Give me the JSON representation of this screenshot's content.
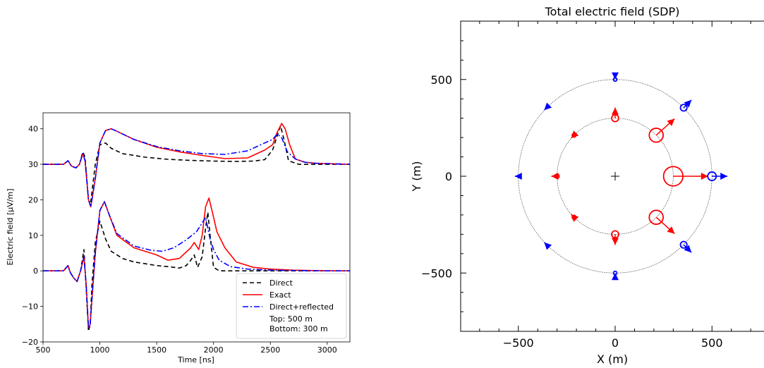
{
  "chart_data": [
    {
      "type": "line",
      "xlabel": "Time [ns]",
      "ylabel": "Electric field [μV/m]",
      "xlim": [
        500,
        3200
      ],
      "ylim": [
        -20,
        44.5
      ],
      "xticks": [
        500,
        1000,
        1500,
        2000,
        2500,
        3000
      ],
      "yticks": [
        -20,
        -10,
        0,
        10,
        20,
        30,
        40
      ],
      "xtick_labels": [
        "500",
        "1000",
        "1500",
        "2000",
        "2500",
        "3000"
      ],
      "ytick_labels": [
        "−20",
        "−10",
        "0",
        "10",
        "20",
        "30",
        "40"
      ],
      "grid": false,
      "legend": {
        "position": "lower-right",
        "entries": [
          "Direct",
          "Exact",
          "Direct+reflected"
        ],
        "note_lines": [
          "Top: 500 m",
          "Bottom: 300 m"
        ]
      },
      "series": [
        {
          "name": "Direct",
          "color": "#000000",
          "dash": "6,4",
          "group": "top",
          "x": [
            500,
            600,
            680,
            720,
            750,
            790,
            820,
            850,
            870,
            900,
            920,
            960,
            1000,
            1050,
            1100,
            1200,
            1400,
            1600,
            1800,
            2000,
            2200,
            2350,
            2450,
            2520,
            2560,
            2590,
            2620,
            2660,
            2750,
            2900,
            3100,
            3200
          ],
          "y": [
            30,
            30,
            30,
            31,
            29.5,
            29,
            30,
            33.5,
            32,
            20,
            19.5,
            30,
            35.5,
            36,
            34.5,
            33,
            32,
            31.4,
            31.1,
            30.9,
            30.8,
            30.9,
            31.3,
            34,
            38,
            40.8,
            37,
            31,
            30,
            30,
            30,
            30
          ]
        },
        {
          "name": "Exact",
          "color": "#ff0000",
          "dash": "",
          "group": "top",
          "x": [
            500,
            600,
            680,
            720,
            750,
            790,
            820,
            850,
            870,
            900,
            920,
            960,
            1000,
            1050,
            1100,
            1150,
            1300,
            1500,
            1700,
            1900,
            2100,
            2300,
            2450,
            2520,
            2560,
            2600,
            2630,
            2670,
            2720,
            2800,
            2900,
            3100,
            3200
          ],
          "y": [
            30,
            30,
            30,
            31,
            29.5,
            29,
            30,
            33,
            31,
            20,
            18,
            26,
            36,
            39.5,
            40,
            39.3,
            37,
            34.8,
            33.5,
            32.5,
            31.6,
            31.8,
            34,
            35.5,
            39,
            41.5,
            40,
            35.5,
            31.5,
            30.6,
            30.3,
            30.1,
            30
          ],
          "labels": [
            "",
            "",
            "",
            "",
            "",
            "",
            "",
            "",
            "",
            "",
            "",
            "",
            "",
            "",
            "",
            "",
            "",
            "",
            "",
            "",
            "",
            "",
            "",
            "",
            "",
            "",
            "",
            "",
            "",
            "",
            "",
            "",
            ""
          ]
        },
        {
          "name": "Direct+reflected",
          "color": "#0000ff",
          "dash": "8,3,2,3",
          "group": "top",
          "x": [
            500,
            600,
            680,
            720,
            750,
            790,
            820,
            850,
            870,
            900,
            920,
            960,
            1000,
            1050,
            1100,
            1150,
            1300,
            1500,
            1700,
            1900,
            2100,
            2300,
            2450,
            2520,
            2560,
            2600,
            2650,
            2720,
            2800,
            2900,
            3100,
            3200
          ],
          "y": [
            30,
            30,
            30,
            31,
            29.5,
            29,
            30,
            33,
            31,
            20,
            18,
            26,
            36,
            39.5,
            40,
            39.3,
            37,
            35,
            33.8,
            33,
            32.8,
            33.8,
            36,
            37,
            38.5,
            37.5,
            33.5,
            31.5,
            30.6,
            30.3,
            30.1,
            30
          ]
        },
        {
          "name": "Direct",
          "color": "#000000",
          "dash": "6,4",
          "group": "bottom",
          "x": [
            500,
            600,
            680,
            720,
            740,
            770,
            800,
            830,
            860,
            880,
            900,
            915,
            930,
            960,
            1000,
            1050,
            1100,
            1200,
            1300,
            1400,
            1500,
            1600,
            1700,
            1760,
            1800,
            1830,
            1860,
            1900,
            1930,
            1950,
            1970,
            2000,
            2050,
            2150,
            2300,
            2500,
            2700,
            3000,
            3200
          ],
          "y": [
            0,
            0,
            0,
            1.5,
            -0.5,
            -2,
            -3,
            0,
            6,
            -5,
            -17,
            -15,
            -4,
            8,
            14,
            9,
            5.5,
            3.5,
            2.5,
            2,
            1.5,
            1.2,
            0.8,
            1.5,
            3,
            4.5,
            1,
            4,
            12,
            16.5,
            10,
            1,
            0,
            0,
            0,
            0,
            0,
            0,
            0
          ]
        },
        {
          "name": "Exact",
          "color": "#ff0000",
          "dash": "",
          "group": "bottom",
          "x": [
            500,
            600,
            680,
            720,
            740,
            770,
            800,
            830,
            860,
            880,
            900,
            915,
            930,
            960,
            1000,
            1040,
            1080,
            1150,
            1300,
            1500,
            1600,
            1700,
            1800,
            1830,
            1870,
            1900,
            1930,
            1960,
            1990,
            2030,
            2100,
            2200,
            2350,
            2500,
            2700,
            3000,
            3200
          ],
          "y": [
            0,
            0,
            0,
            1.5,
            -0.5,
            -2,
            -3,
            0,
            4,
            -4,
            -16,
            -15,
            -8,
            5,
            17,
            19.5,
            16,
            10,
            6.5,
            4.5,
            3,
            3.5,
            6.5,
            8,
            6,
            10,
            18,
            20.5,
            16.5,
            11,
            6.5,
            2.5,
            1,
            0.5,
            0.2,
            0,
            0
          ]
        },
        {
          "name": "Direct+reflected",
          "color": "#0000ff",
          "dash": "8,3,2,3",
          "group": "bottom",
          "x": [
            500,
            600,
            680,
            720,
            740,
            770,
            800,
            830,
            860,
            880,
            900,
            915,
            930,
            960,
            1000,
            1040,
            1080,
            1150,
            1300,
            1450,
            1550,
            1650,
            1750,
            1850,
            1900,
            1930,
            1950,
            1970,
            2000,
            2050,
            2150,
            2300,
            2500,
            2700,
            3000,
            3200
          ],
          "y": [
            0,
            0,
            0,
            1.5,
            -0.5,
            -2,
            -3,
            0,
            4,
            -4,
            -16,
            -15,
            -8,
            5,
            17,
            19.5,
            16,
            10.5,
            7,
            5.8,
            5.5,
            6.5,
            8.5,
            11,
            13.5,
            15,
            12,
            9,
            6,
            3,
            1.2,
            0.5,
            0.2,
            0.1,
            0,
            0
          ]
        }
      ]
    },
    {
      "type": "scatter",
      "title": "Total electric field (SDP)",
      "xlabel": "X (m)",
      "ylabel": "Y (m)",
      "xlim": [
        -800,
        800
      ],
      "ylim": [
        -800,
        800
      ],
      "xticks": [
        -500,
        0,
        500
      ],
      "yticks": [
        -500,
        0,
        500
      ],
      "xtick_labels": [
        "−500",
        "0",
        "500"
      ],
      "ytick_labels": [
        "−500",
        "0",
        "500"
      ],
      "grid": false,
      "reference_circles": [
        300,
        500
      ],
      "center_marker": "+",
      "series": [
        {
          "name": "",
          "color": "#ff0000",
          "ring": 300,
          "points": [
            {
              "x": 300,
              "y": 0,
              "r": 50,
              "dx": 180,
              "dy": 0
            },
            {
              "x": 212,
              "y": 212,
              "r": 36,
              "dx": 95,
              "dy": 85
            },
            {
              "x": 212,
              "y": -212,
              "r": 36,
              "dx": 95,
              "dy": -85
            },
            {
              "x": 0,
              "y": 300,
              "r": 18,
              "dx": 0,
              "dy": 55
            },
            {
              "x": 0,
              "y": -300,
              "r": 18,
              "dx": 0,
              "dy": -55
            },
            {
              "x": -212,
              "y": 212,
              "r": 10,
              "dx": -15,
              "dy": -15
            },
            {
              "x": -212,
              "y": -212,
              "r": 10,
              "dx": -15,
              "dy": 15
            },
            {
              "x": -300,
              "y": 0,
              "r": 11,
              "dx": -30,
              "dy": 0
            }
          ]
        },
        {
          "name": "",
          "color": "#0000ff",
          "ring": 500,
          "points": [
            {
              "x": 500,
              "y": 0,
              "r": 22,
              "dx": 80,
              "dy": 0
            },
            {
              "x": 354,
              "y": 354,
              "r": 17,
              "dx": 40,
              "dy": 40
            },
            {
              "x": 354,
              "y": -354,
              "r": 17,
              "dx": 40,
              "dy": -40
            },
            {
              "x": 0,
              "y": 500,
              "r": 9,
              "dx": 0,
              "dy": 0
            },
            {
              "x": 0,
              "y": -500,
              "r": 9,
              "dx": 0,
              "dy": 0
            },
            {
              "x": -354,
              "y": 354,
              "r": 4,
              "dx": -12,
              "dy": -12
            },
            {
              "x": -354,
              "y": -354,
              "r": 4,
              "dx": -12,
              "dy": 12
            },
            {
              "x": -500,
              "y": 0,
              "r": 5,
              "dx": -18,
              "dy": 0
            }
          ]
        }
      ]
    }
  ]
}
